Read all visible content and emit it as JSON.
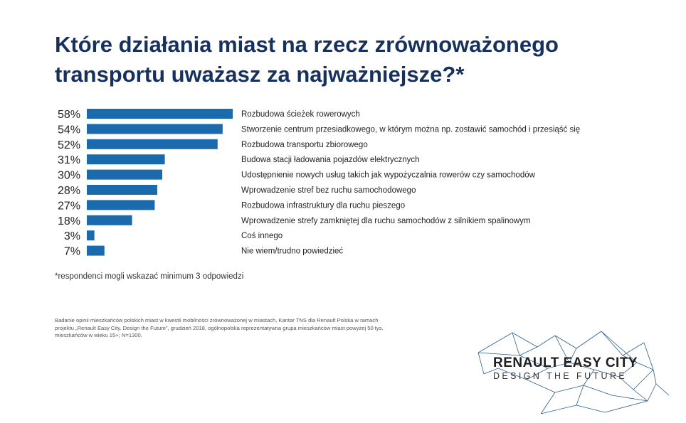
{
  "title": "Które działania miast na rzecz zrównoważonego\ntransportu uważasz za najważniejsze?*",
  "chart_data": {
    "type": "bar",
    "orientation": "horizontal",
    "bar_color": "#1a6aad",
    "categories": [
      "Rozbudowa ścieżek rowerowych",
      "Stworzenie centrum przesiadkowego, w którym można np. zostawić samochód i przesiąść się",
      "Rozbudowa transportu zbiorowego",
      "Budowa stacji ładowania pojazdów elektrycznych",
      "Udostępnienie nowych usług takich jak wypożyczalnia rowerów czy samochodów",
      "Wprowadzenie stref bez ruchu samochodowego",
      "Rozbudowa infrastruktury dla ruchu pieszego",
      "Wprowadzenie strefy zamkniętej dla ruchu samochodów z silnikiem spalinowym",
      "Coś innego",
      "Nie wiem/trudno powiedzieć"
    ],
    "values": [
      58,
      54,
      52,
      31,
      30,
      28,
      27,
      18,
      3,
      7
    ],
    "value_labels": [
      "58%",
      "54%",
      "52%",
      "31%",
      "30%",
      "28%",
      "27%",
      "18%",
      "3%",
      "7%"
    ]
  },
  "footnote": "*respondenci mogli wskazać minimum 3 odpowiedzi",
  "source": "Badanie opinii mieszkańców polskich miast w kwestii mobilności zrównoważonej w miastach, Kantar TNS dla Renault Polska w ramach projektu „Renault Easy City. Design the Future”, grudzień 2018, ogólnopolska reprezentatywna grupa mieszkańców miast powyżej 50 tys. mieszkańców w wieku 15+; N=1300.",
  "logo": {
    "brand": "RENAULT EASY CITY",
    "tagline": "DESIGN THE FUTURE",
    "line_color": "#2a5d8f"
  }
}
